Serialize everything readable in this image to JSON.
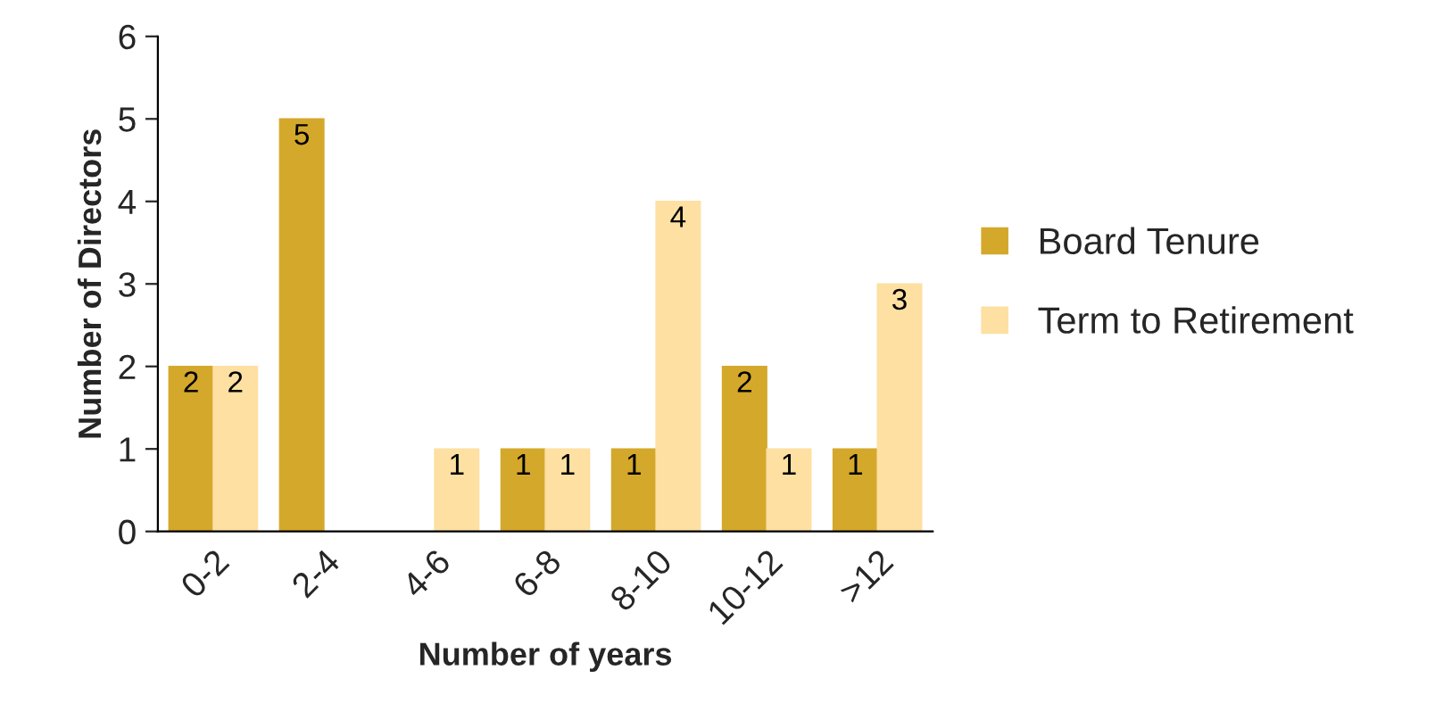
{
  "chart_data": {
    "type": "bar",
    "xlabel": "Number of years",
    "ylabel": "Number of Directors",
    "categories": [
      "0-2",
      "2-4",
      "4-6",
      "6-8",
      "8-10",
      "10-12",
      ">12"
    ],
    "series": [
      {
        "name": "Board Tenure",
        "color": "#d4a82b",
        "values": [
          2,
          5,
          0,
          1,
          1,
          2,
          1
        ],
        "value_labels": [
          "2",
          "5",
          null,
          "1",
          "1",
          "2",
          "1"
        ]
      },
      {
        "name": "Term to Retirement",
        "color": "#fde0a2",
        "values": [
          2,
          0,
          1,
          1,
          4,
          1,
          3
        ],
        "value_labels": [
          "2",
          null,
          "1",
          "1",
          "4",
          "1",
          "3"
        ]
      }
    ],
    "ylim": [
      0,
      6
    ],
    "yticks": [
      0,
      1,
      2,
      3,
      4,
      5,
      6
    ],
    "grid": false,
    "legend": "right"
  }
}
